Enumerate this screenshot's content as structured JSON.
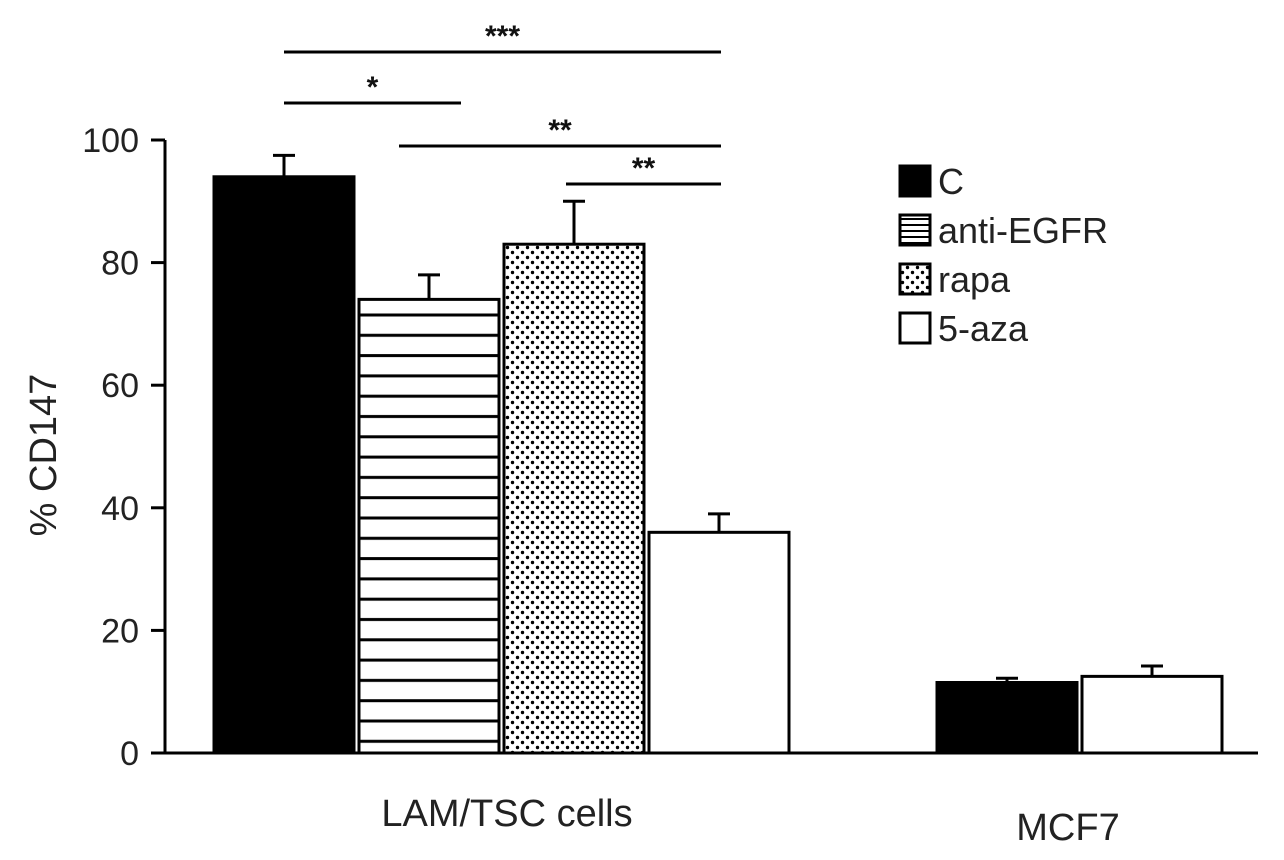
{
  "chart_data": {
    "type": "bar",
    "title": "",
    "xlabel": "",
    "ylabel": "% CD147",
    "ylim": [
      0,
      100
    ],
    "yticks": [
      0,
      20,
      40,
      60,
      80,
      100
    ],
    "grid": false,
    "legend_position": "top-right",
    "series": [
      {
        "name": "C",
        "pattern": "solid-black",
        "color": "#000000"
      },
      {
        "name": "anti-EGFR",
        "pattern": "horizontal-stripes",
        "color": "#000000"
      },
      {
        "name": "rapa",
        "pattern": "dots",
        "color": "#000000"
      },
      {
        "name": "5-aza",
        "pattern": "white",
        "color": "#ffffff"
      }
    ],
    "groups": [
      {
        "label": "LAM/TSC cells",
        "bars": [
          {
            "series": "C",
            "value": 94,
            "error": 3.5
          },
          {
            "series": "anti-EGFR",
            "value": 74,
            "error": 4
          },
          {
            "series": "rapa",
            "value": 83,
            "error": 7
          },
          {
            "series": "5-aza",
            "value": 36,
            "error": 3
          }
        ]
      },
      {
        "label": "MCF7",
        "bars": [
          {
            "series": "C",
            "value": 11.5,
            "error": 0.7
          },
          {
            "series": "5-aza",
            "value": 12.5,
            "error": 1.7
          }
        ]
      }
    ],
    "significance": [
      {
        "label": "***",
        "from": {
          "group": 0,
          "bar": "C"
        },
        "to": {
          "group": 0,
          "bar": "5-aza"
        }
      },
      {
        "label": "*",
        "from": {
          "group": 0,
          "bar": "C"
        },
        "to": {
          "group": 0,
          "bar": "anti-EGFR"
        }
      },
      {
        "label": "**",
        "from": {
          "group": 0,
          "bar": "anti-EGFR"
        },
        "to": {
          "group": 0,
          "bar": "5-aza"
        }
      },
      {
        "label": "**",
        "from": {
          "group": 0,
          "bar": "rapa"
        },
        "to": {
          "group": 0,
          "bar": "5-aza"
        }
      }
    ]
  }
}
